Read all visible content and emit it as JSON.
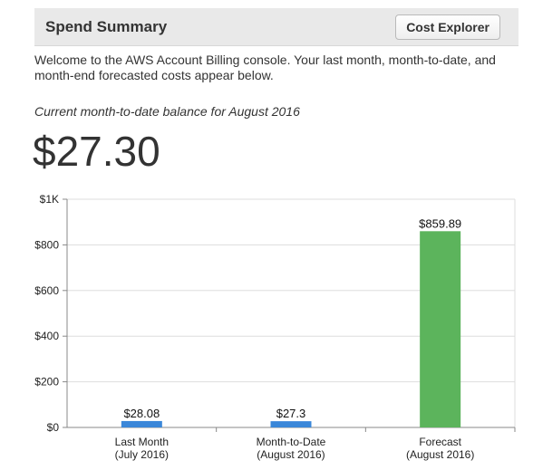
{
  "header": {
    "title": "Spend Summary",
    "cost_explorer_label": "Cost Explorer"
  },
  "welcome_text": "Welcome to the AWS Account Billing console. Your last month, month-to-date, and month-end forecasted costs appear below.",
  "balance": {
    "label": "Current month-to-date balance for August 2016",
    "amount": "$27.30"
  },
  "chart_data": {
    "type": "bar",
    "categories": [
      [
        "Last Month",
        "(July 2016)"
      ],
      [
        "Month-to-Date",
        "(August 2016)"
      ],
      [
        "Forecast",
        "(August 2016)"
      ]
    ],
    "values": [
      28.08,
      27.3,
      859.89
    ],
    "data_labels": [
      "$28.08",
      "$27.3",
      "$859.89"
    ],
    "colors": [
      "#3a87d9",
      "#3a87d9",
      "#5cb45c"
    ],
    "yticks": [
      0,
      200,
      400,
      600,
      800,
      1000
    ],
    "ytick_labels": [
      "$0",
      "$200",
      "$400",
      "$600",
      "$800",
      "$1K"
    ],
    "ylim": [
      0,
      1000
    ],
    "grid": true,
    "gridline_color": "#dddddd"
  }
}
